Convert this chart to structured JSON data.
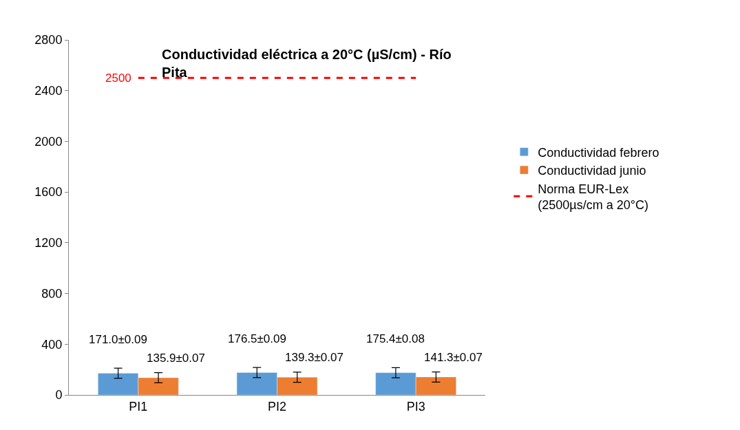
{
  "chart_data": {
    "type": "bar",
    "title": "Conductividad eléctrica a 20°C (µS/cm) - Río\nPita",
    "categories": [
      "PI1",
      "PI2",
      "PI3"
    ],
    "series": [
      {
        "name": "Conductividad febrero",
        "color": "#5b9bd5",
        "values": [
          171.0,
          176.5,
          175.4
        ],
        "errors": [
          40,
          40,
          40
        ],
        "value_labels": [
          "171.0±0.09",
          "176.5±0.09",
          "175.4±0.08"
        ]
      },
      {
        "name": "Conductividad junio",
        "color": "#ed7d31",
        "values": [
          135.9,
          139.3,
          141.3
        ],
        "errors": [
          40,
          40,
          40
        ],
        "value_labels": [
          "135.9±0.07",
          "139.3±0.07",
          "141.3±0.07"
        ]
      },
      {
        "name": "Norma EUR-Lex\n(2500µs/cm a 20°C)",
        "type": "line",
        "color": "#ff0000",
        "line_style": "dashed",
        "values": [
          2500,
          2500,
          2500
        ],
        "value_labels": [
          "2500",
          null,
          null
        ]
      }
    ],
    "ylim": [
      0,
      2800
    ],
    "yticks": [
      0,
      400,
      800,
      1200,
      1600,
      2000,
      2400,
      2800
    ],
    "legend": "right"
  }
}
